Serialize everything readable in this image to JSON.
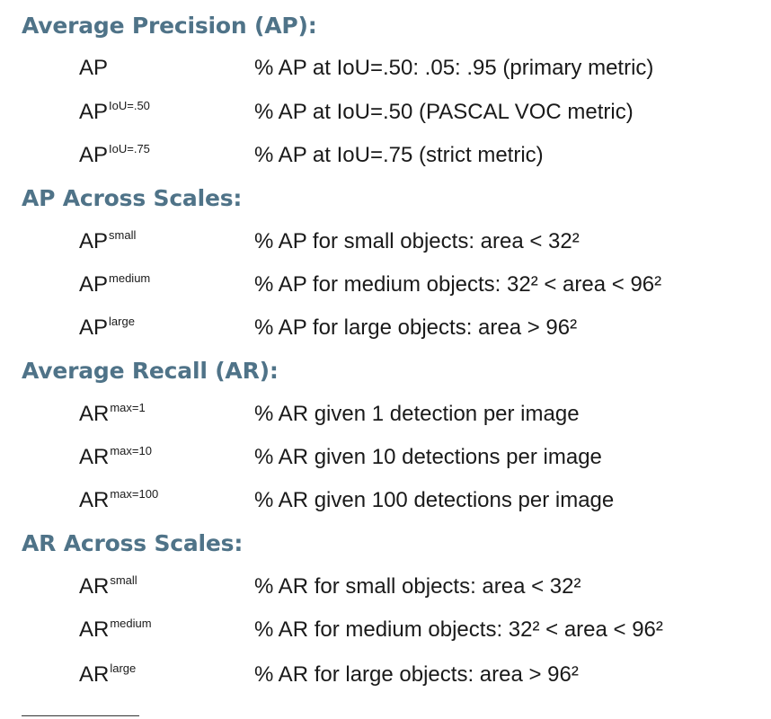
{
  "sections": [
    {
      "heading": "Average Precision (AP):",
      "rows": [
        {
          "base": "AP",
          "sup": "",
          "desc": "% AP at IoU=.50: .05: .95 (primary metric)"
        },
        {
          "base": "AP",
          "sup": "IoU=.50",
          "desc": "% AP at IoU=.50 (PASCAL VOC metric)"
        },
        {
          "base": "AP",
          "sup": "IoU=.75",
          "desc": "% AP at IoU=.75 (strict metric)"
        }
      ]
    },
    {
      "heading": "AP Across Scales:",
      "rows": [
        {
          "base": "AP",
          "sup": "small",
          "desc": "% AP for small objects: area < 32²"
        },
        {
          "base": "AP",
          "sup": "medium",
          "desc": "% AP for medium objects: 32² < area < 96²"
        },
        {
          "base": "AP",
          "sup": "large",
          "desc": "% AP for large objects: area > 96²"
        }
      ]
    },
    {
      "heading": "Average Recall (AR):",
      "rows": [
        {
          "base": "AR",
          "sup": "max=1",
          "desc": "% AR given 1 detection per image"
        },
        {
          "base": "AR",
          "sup": "max=10",
          "desc": "% AR given 10 detections per image"
        },
        {
          "base": "AR",
          "sup": "max=100",
          "desc": "% AR given 100 detections per image"
        }
      ]
    },
    {
      "heading": "AR Across Scales:",
      "rows": [
        {
          "base": "AR",
          "sup": "small",
          "desc": "% AR for small objects: area < 32²"
        },
        {
          "base": "AR",
          "sup": "medium",
          "desc": "% AR for medium objects: 32² < area < 96²"
        },
        {
          "base": "AR",
          "sup": "large",
          "desc": "% AR for large objects: area > 96²"
        }
      ]
    }
  ]
}
